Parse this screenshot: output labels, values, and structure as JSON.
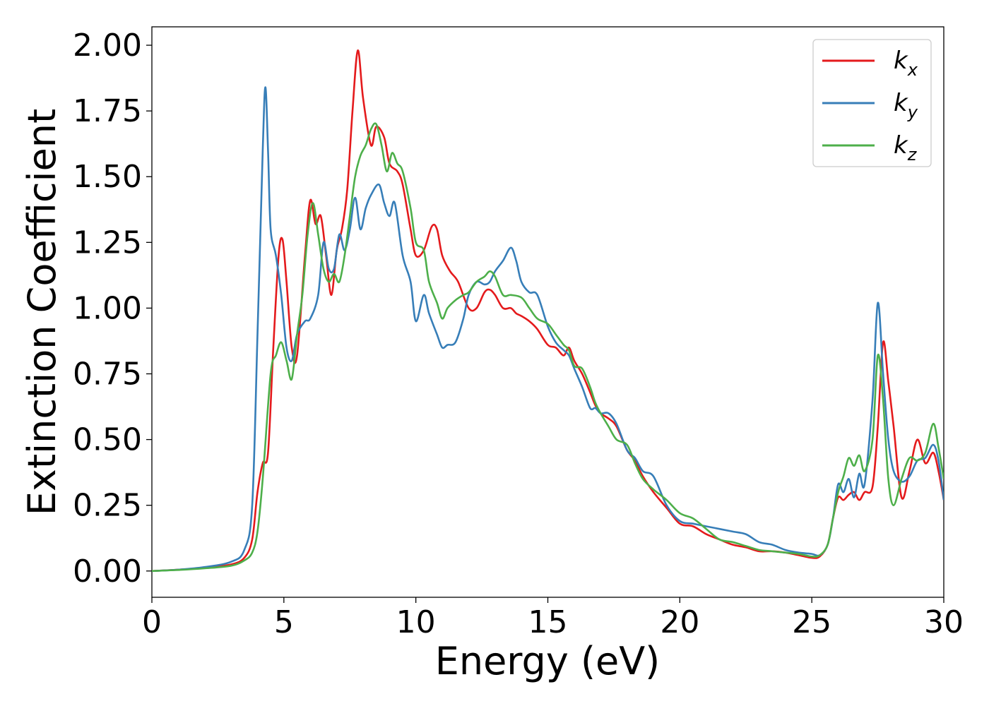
{
  "chart_data": {
    "type": "line",
    "title": "",
    "xlabel": "Energy (eV)",
    "ylabel": "Extinction Coefficient",
    "xlim": [
      0,
      30
    ],
    "ylim": [
      -0.1,
      2.07
    ],
    "xticks": [
      0,
      5,
      10,
      15,
      20,
      25,
      30
    ],
    "xtick_labels": [
      "0",
      "5",
      "10",
      "15",
      "20",
      "25",
      "30"
    ],
    "yticks": [
      0.0,
      0.25,
      0.5,
      0.75,
      1.0,
      1.25,
      1.5,
      1.75,
      2.0
    ],
    "ytick_labels": [
      "0.00",
      "0.25",
      "0.50",
      "0.75",
      "1.00",
      "1.25",
      "1.50",
      "1.75",
      "2.00"
    ],
    "grid": false,
    "legend_position": "top-right",
    "series": [
      {
        "name": "k",
        "subscript": "x",
        "color": "#e41a1c",
        "x": [
          0,
          1,
          2,
          3,
          3.5,
          3.8,
          4.0,
          4.2,
          4.4,
          4.6,
          4.8,
          4.95,
          5.1,
          5.3,
          5.5,
          5.8,
          6.0,
          6.2,
          6.4,
          6.6,
          6.8,
          7.0,
          7.2,
          7.4,
          7.6,
          7.8,
          8.0,
          8.3,
          8.5,
          8.8,
          9.0,
          9.3,
          9.5,
          9.8,
          10.0,
          10.3,
          10.6,
          10.8,
          11.0,
          11.3,
          11.6,
          12.0,
          12.3,
          12.6,
          12.8,
          13.0,
          13.3,
          13.6,
          13.8,
          14.0,
          14.3,
          14.6,
          15.0,
          15.3,
          15.6,
          15.8,
          16.0,
          16.3,
          16.6,
          16.8,
          17.0,
          17.3,
          17.6,
          18.0,
          18.3,
          18.6,
          19.0,
          19.5,
          20.0,
          20.5,
          21.0,
          21.5,
          22.0,
          22.5,
          23.0,
          23.5,
          24.0,
          24.5,
          25.0,
          25.3,
          25.6,
          25.8,
          26.0,
          26.2,
          26.4,
          26.6,
          26.8,
          27.0,
          27.3,
          27.5,
          27.7,
          27.9,
          28.1,
          28.4,
          28.7,
          29.0,
          29.3,
          29.6,
          29.8,
          30.0
        ],
        "y": [
          0.0,
          0.005,
          0.012,
          0.025,
          0.05,
          0.12,
          0.3,
          0.41,
          0.45,
          0.85,
          1.2,
          1.26,
          1.1,
          0.85,
          0.82,
          1.2,
          1.41,
          1.32,
          1.35,
          1.2,
          1.05,
          1.22,
          1.3,
          1.45,
          1.75,
          1.98,
          1.8,
          1.62,
          1.69,
          1.65,
          1.55,
          1.52,
          1.47,
          1.3,
          1.2,
          1.22,
          1.31,
          1.3,
          1.2,
          1.14,
          1.1,
          1.0,
          1.0,
          1.06,
          1.07,
          1.05,
          1.0,
          1.0,
          0.98,
          0.97,
          0.95,
          0.92,
          0.86,
          0.85,
          0.82,
          0.85,
          0.8,
          0.75,
          0.68,
          0.63,
          0.6,
          0.58,
          0.55,
          0.46,
          0.42,
          0.36,
          0.3,
          0.24,
          0.18,
          0.17,
          0.14,
          0.12,
          0.1,
          0.09,
          0.075,
          0.075,
          0.07,
          0.06,
          0.05,
          0.055,
          0.1,
          0.2,
          0.28,
          0.27,
          0.29,
          0.3,
          0.27,
          0.3,
          0.32,
          0.55,
          0.87,
          0.72,
          0.55,
          0.28,
          0.38,
          0.5,
          0.41,
          0.45,
          0.38,
          0.27
        ]
      },
      {
        "name": "k",
        "subscript": "y",
        "color": "#377eb8",
        "x": [
          0,
          1,
          2,
          3,
          3.5,
          3.8,
          4.0,
          4.2,
          4.3,
          4.4,
          4.5,
          4.7,
          4.9,
          5.1,
          5.3,
          5.5,
          5.8,
          6.0,
          6.3,
          6.5,
          6.7,
          6.9,
          7.1,
          7.3,
          7.5,
          7.7,
          7.9,
          8.1,
          8.3,
          8.6,
          8.8,
          9.0,
          9.2,
          9.5,
          9.8,
          10.0,
          10.3,
          10.5,
          10.8,
          11.0,
          11.2,
          11.5,
          11.8,
          12.0,
          12.3,
          12.6,
          12.8,
          13.0,
          13.3,
          13.6,
          13.8,
          14.0,
          14.3,
          14.6,
          15.0,
          15.3,
          15.6,
          15.8,
          16.0,
          16.3,
          16.6,
          16.8,
          17.0,
          17.3,
          17.6,
          18.0,
          18.3,
          18.6,
          19.0,
          19.5,
          20.0,
          20.5,
          21.0,
          21.5,
          22.0,
          22.5,
          23.0,
          23.5,
          24.0,
          24.5,
          25.0,
          25.3,
          25.6,
          25.8,
          26.0,
          26.2,
          26.4,
          26.6,
          26.8,
          27.0,
          27.3,
          27.5,
          27.7,
          27.9,
          28.1,
          28.4,
          28.7,
          29.0,
          29.3,
          29.6,
          29.8,
          30.0
        ],
        "y": [
          0.0,
          0.005,
          0.015,
          0.035,
          0.08,
          0.25,
          0.9,
          1.6,
          1.84,
          1.6,
          1.3,
          1.2,
          1.05,
          0.85,
          0.8,
          0.9,
          0.95,
          0.96,
          1.05,
          1.25,
          1.15,
          1.15,
          1.28,
          1.22,
          1.3,
          1.42,
          1.3,
          1.38,
          1.43,
          1.47,
          1.4,
          1.35,
          1.4,
          1.2,
          1.1,
          0.95,
          1.05,
          0.98,
          0.9,
          0.85,
          0.86,
          0.87,
          0.96,
          1.05,
          1.1,
          1.09,
          1.1,
          1.14,
          1.18,
          1.23,
          1.18,
          1.1,
          1.06,
          1.05,
          0.93,
          0.87,
          0.84,
          0.82,
          0.77,
          0.7,
          0.62,
          0.62,
          0.6,
          0.6,
          0.56,
          0.46,
          0.43,
          0.38,
          0.36,
          0.25,
          0.19,
          0.18,
          0.17,
          0.16,
          0.15,
          0.14,
          0.11,
          0.1,
          0.08,
          0.07,
          0.065,
          0.06,
          0.1,
          0.2,
          0.33,
          0.3,
          0.35,
          0.28,
          0.37,
          0.33,
          0.65,
          1.02,
          0.75,
          0.5,
          0.38,
          0.34,
          0.36,
          0.42,
          0.43,
          0.48,
          0.42,
          0.27
        ]
      },
      {
        "name": "k",
        "subscript": "z",
        "color": "#4daf4a",
        "x": [
          0,
          1,
          2,
          3,
          3.5,
          3.8,
          4.0,
          4.2,
          4.5,
          4.7,
          4.9,
          5.1,
          5.3,
          5.5,
          5.7,
          5.9,
          6.1,
          6.3,
          6.5,
          6.7,
          6.9,
          7.1,
          7.3,
          7.5,
          7.7,
          7.9,
          8.1,
          8.3,
          8.5,
          8.7,
          8.9,
          9.1,
          9.3,
          9.5,
          9.8,
          10.0,
          10.3,
          10.5,
          10.8,
          11.0,
          11.2,
          11.5,
          11.8,
          12.0,
          12.3,
          12.6,
          12.8,
          13.0,
          13.3,
          13.6,
          14.0,
          14.3,
          14.6,
          15.0,
          15.3,
          15.6,
          15.8,
          16.0,
          16.3,
          16.6,
          16.8,
          17.0,
          17.3,
          17.6,
          18.0,
          18.3,
          18.6,
          19.0,
          19.5,
          20.0,
          20.5,
          21.0,
          21.5,
          22.0,
          22.5,
          23.0,
          23.5,
          24.0,
          24.5,
          25.0,
          25.3,
          25.6,
          25.8,
          26.0,
          26.2,
          26.4,
          26.6,
          26.8,
          27.0,
          27.3,
          27.5,
          27.7,
          27.9,
          28.1,
          28.4,
          28.7,
          29.0,
          29.3,
          29.6,
          29.8,
          30.0
        ],
        "y": [
          0.0,
          0.004,
          0.01,
          0.02,
          0.04,
          0.07,
          0.15,
          0.35,
          0.75,
          0.82,
          0.87,
          0.8,
          0.73,
          0.9,
          1.05,
          1.28,
          1.4,
          1.28,
          1.15,
          1.1,
          1.13,
          1.1,
          1.2,
          1.35,
          1.5,
          1.58,
          1.62,
          1.68,
          1.7,
          1.62,
          1.52,
          1.59,
          1.55,
          1.52,
          1.38,
          1.25,
          1.22,
          1.1,
          1.02,
          0.96,
          1.0,
          1.03,
          1.05,
          1.06,
          1.1,
          1.12,
          1.14,
          1.12,
          1.05,
          1.05,
          1.04,
          1.0,
          0.96,
          0.94,
          0.9,
          0.86,
          0.84,
          0.78,
          0.77,
          0.7,
          0.64,
          0.6,
          0.55,
          0.5,
          0.48,
          0.41,
          0.35,
          0.31,
          0.27,
          0.22,
          0.2,
          0.16,
          0.12,
          0.11,
          0.095,
          0.08,
          0.075,
          0.07,
          0.065,
          0.055,
          0.06,
          0.1,
          0.2,
          0.3,
          0.36,
          0.43,
          0.4,
          0.44,
          0.38,
          0.5,
          0.82,
          0.65,
          0.35,
          0.25,
          0.35,
          0.43,
          0.42,
          0.45,
          0.56,
          0.47,
          0.35
        ]
      }
    ]
  }
}
